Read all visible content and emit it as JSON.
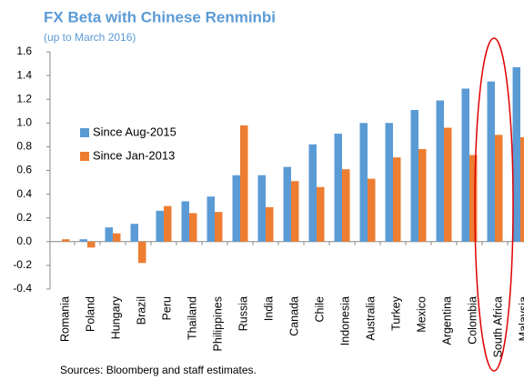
{
  "chart_data": {
    "type": "bar",
    "title": "FX Beta with Chinese Renminbi",
    "subtitle": "(up to March 2016)",
    "source": "Sources: Bloomberg and staff estimates.",
    "categories": [
      "Romania",
      "Poland",
      "Hungary",
      "Brazil",
      "Peru",
      "Thailand",
      "Philippines",
      "Russia",
      "India",
      "Canada",
      "Chile",
      "Indonesia",
      "Australia",
      "Turkey",
      "Mexico",
      "Argentina",
      "Colombia",
      "South Africa",
      "Malaysia"
    ],
    "series": [
      {
        "name": "Since Aug-2015",
        "color": "#5b9bd5",
        "values": [
          0,
          0.02,
          0.12,
          0.15,
          0.26,
          0.34,
          0.38,
          0.56,
          0.56,
          0.63,
          0.82,
          0.91,
          1.0,
          1.0,
          1.11,
          1.19,
          1.29,
          1.35,
          1.47
        ]
      },
      {
        "name": "Since Jan-2013",
        "color": "#ed7d31",
        "values": [
          0.02,
          -0.05,
          0.07,
          -0.18,
          0.3,
          0.24,
          0.25,
          0.98,
          0.29,
          0.51,
          0.46,
          0.61,
          0.53,
          0.71,
          0.78,
          0.96,
          0.73,
          0.9,
          0.88
        ]
      }
    ],
    "ylim": [
      -0.4,
      1.6
    ],
    "yticks": [
      -0.4,
      -0.2,
      {
        "value": 0,
        "label": "0.0"
      },
      0.2,
      0.4,
      0.6,
      0.8,
      {
        "value": 1,
        "label": "1.0"
      },
      1.2,
      1.4,
      1.6
    ],
    "grid": false,
    "legend": "left"
  }
}
